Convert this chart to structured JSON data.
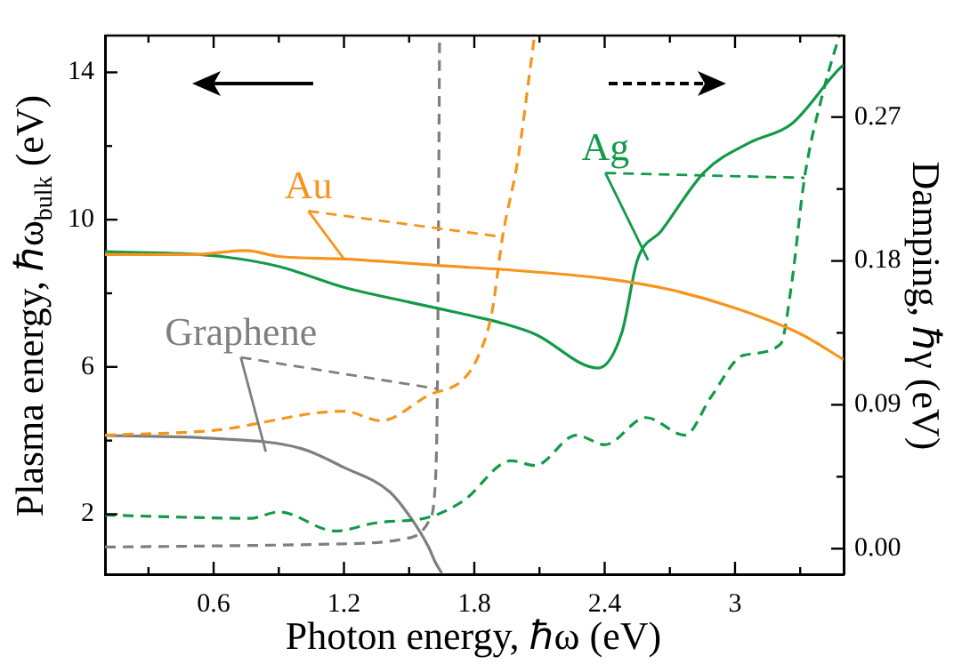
{
  "chart_data": {
    "type": "line",
    "xlabel": "Photon energy, ℏω (eV)",
    "ylabel": "Plasma energy, ℏω$_{bulk}$ (eV)",
    "y2label": "Damping, ℏγ (eV)",
    "xlim": [
      0.1,
      3.5
    ],
    "xticks": [
      {
        "value": 0.3,
        "label": null
      },
      0.6,
      {
        "value": 0.9,
        "label": null
      },
      1.2,
      {
        "value": 1.5,
        "label": null
      },
      1.8,
      {
        "value": 2.1,
        "label": null
      },
      2.4,
      {
        "value": 2.7,
        "label": null
      },
      3.0,
      {
        "value": 3.3,
        "label": null
      }
    ],
    "ylim": [
      0.37,
      15
    ],
    "yticks": [
      2,
      {
        "value": 4,
        "label": null
      },
      6,
      {
        "value": 8,
        "label": null
      },
      10,
      {
        "value": 12,
        "label": null
      },
      14
    ],
    "y2lim": [
      -0.016,
      0.321
    ],
    "y2ticks": [
      {
        "value": 0,
        "label": "0.00"
      },
      {
        "value": 0.045,
        "label": null
      },
      {
        "value": 0.09,
        "label": "0.09"
      },
      {
        "value": 0.135,
        "label": null
      },
      {
        "value": 0.18,
        "label": "0.18"
      },
      {
        "value": 0.225,
        "label": null
      },
      {
        "value": 0.27,
        "label": "0.27"
      }
    ],
    "grid": false,
    "legend": false,
    "marker": "none",
    "annotations": [
      {
        "text": "Au",
        "x": 1.2,
        "y": 8.93
      },
      {
        "text": "Ag",
        "x": 2.6,
        "y": 8.9
      },
      {
        "text": "Graphene",
        "x": 0.84,
        "y": 3.7
      }
    ],
    "series": [
      {
        "color": "#f7941d",
        "line_style": "solid",
        "x": [
          0.1,
          0.5,
          0.75,
          0.9,
          1.2,
          1.7,
          1.92,
          2.4,
          2.7,
          3.0,
          3.3,
          3.5
        ],
        "values": [
          9.05,
          9.05,
          9.16,
          9.0,
          8.93,
          8.73,
          8.65,
          8.4,
          8.1,
          7.6,
          6.9,
          6.2
        ]
      },
      {
        "color": "#f7941d",
        "line_style": "dashed",
        "axis": "y2",
        "x": [
          0.1,
          0.6,
          1.2,
          1.37,
          1.59,
          1.75,
          1.82,
          1.88,
          1.93,
          2.0,
          2.056,
          2.077
        ],
        "values": [
          0.071,
          0.074,
          0.086,
          0.08,
          0.096,
          0.106,
          0.121,
          0.147,
          0.195,
          0.243,
          0.299,
          0.321
        ]
      },
      {
        "color": "#129a48",
        "line_style": "solid",
        "x": [
          0.1,
          0.6,
          0.9,
          1.2,
          1.5,
          1.8,
          1.92,
          2.08,
          2.37,
          2.48,
          2.55,
          2.66,
          2.86,
          3.07,
          3.26,
          3.48,
          3.5
        ],
        "values": [
          9.13,
          9.02,
          8.73,
          8.16,
          7.76,
          7.37,
          7.2,
          6.89,
          5.97,
          6.95,
          8.89,
          9.69,
          11.3,
          12.1,
          12.6,
          14.1,
          14.2
        ]
      },
      {
        "color": "#129a48",
        "line_style": "dashed",
        "axis": "y2",
        "x": [
          0.1,
          0.77,
          0.9,
          1.16,
          1.34,
          1.6,
          1.75,
          1.97,
          2.08,
          2.27,
          2.4,
          2.59,
          2.77,
          2.89,
          3.04,
          3.21,
          3.26,
          3.32,
          3.41,
          3.48
        ],
        "values": [
          0.021,
          0.019,
          0.023,
          0.011,
          0.016,
          0.02,
          0.03,
          0.055,
          0.052,
          0.071,
          0.065,
          0.082,
          0.071,
          0.095,
          0.121,
          0.128,
          0.165,
          0.232,
          0.288,
          0.321
        ]
      },
      {
        "color": "#7f7f7f",
        "line_style": "solid",
        "x": [
          0.1,
          0.6,
          1.0,
          1.2,
          1.41,
          1.51,
          1.59,
          1.62,
          1.65
        ],
        "values": [
          4.14,
          4.06,
          3.79,
          3.27,
          2.61,
          1.88,
          1.1,
          0.7,
          0.4
        ]
      },
      {
        "color": "#7f7f7f",
        "line_style": "dashed",
        "axis": "y2",
        "x": [
          0.1,
          1.2,
          1.51,
          1.59,
          1.62,
          1.63,
          1.635,
          1.64
        ],
        "values": [
          0.001,
          0.003,
          0.007,
          0.017,
          0.04,
          0.1,
          0.2,
          0.32
        ]
      }
    ]
  }
}
